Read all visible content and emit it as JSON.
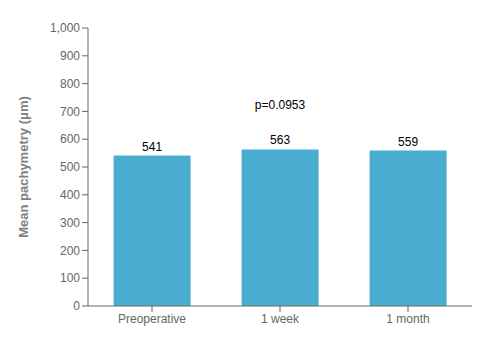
{
  "chart_data": {
    "type": "bar",
    "categories": [
      "Preoperative",
      "1 week",
      "1 month"
    ],
    "values": [
      541,
      563,
      559
    ],
    "color": "#4BAED0",
    "ylabel": "Mean pachymetry (μm)",
    "ylim": [
      0,
      1000
    ],
    "yticks": [
      0,
      100,
      200,
      300,
      400,
      500,
      600,
      700,
      800,
      900,
      {
        "value": 1000,
        "label": "1,000"
      }
    ],
    "grid": false,
    "data_labels": true,
    "annotations": [
      {
        "text": "p=0.0953",
        "x": "1 week",
        "y": 690
      }
    ]
  }
}
